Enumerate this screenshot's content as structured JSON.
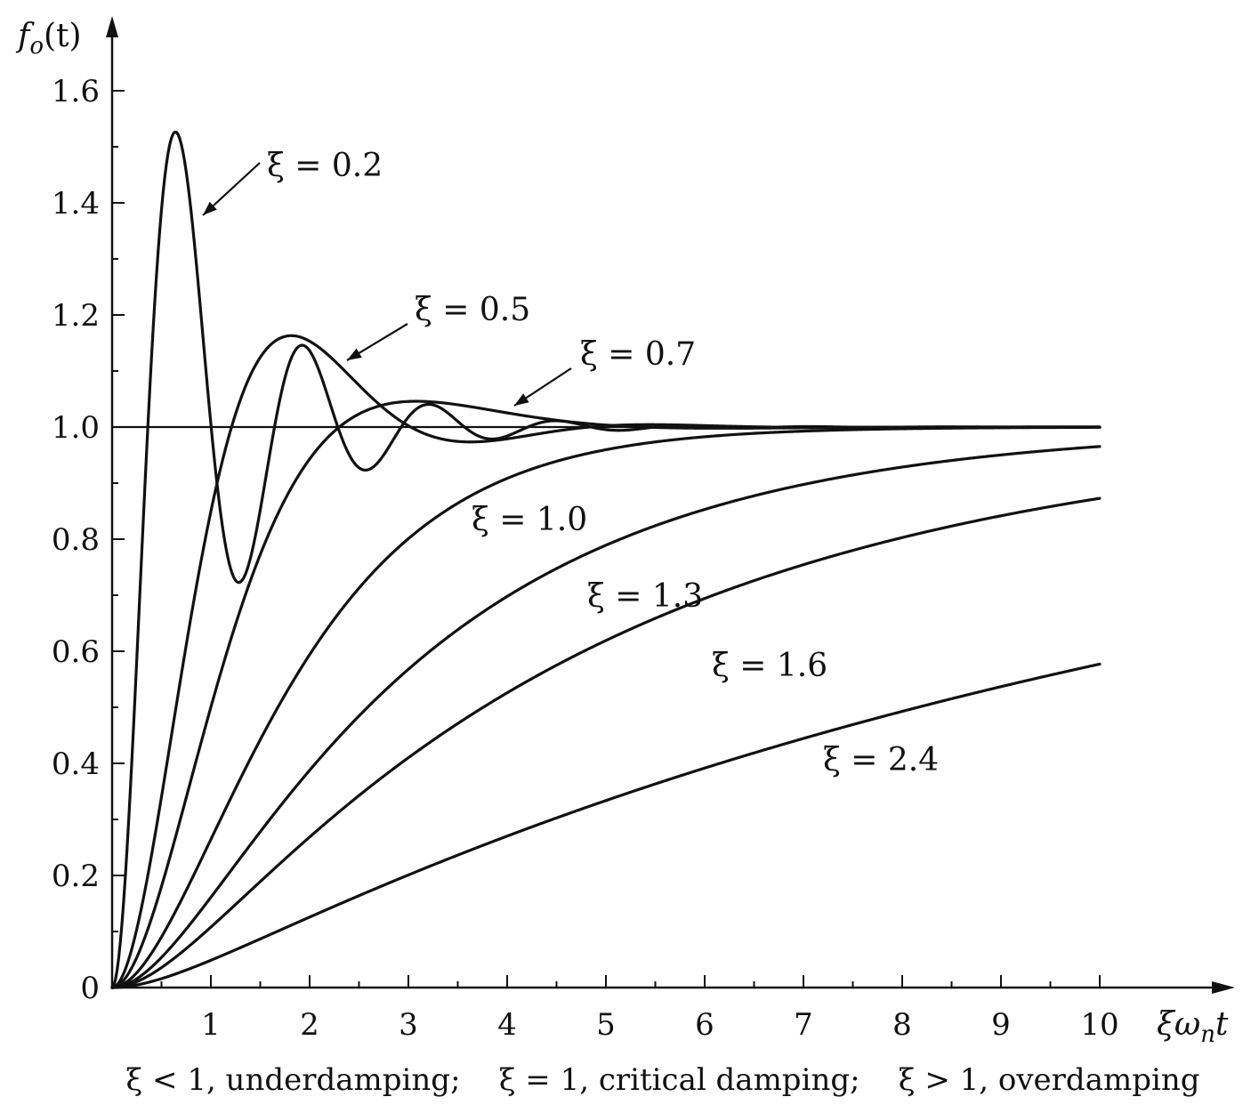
{
  "chart_data": {
    "type": "line",
    "xlabel": "ξω",
    "xlabel_sub": "n",
    "xlabel_tail": "t",
    "ylabel": "f",
    "ylabel_sub": "o",
    "ylabel_tail": "(t)",
    "xlim": [
      0,
      10
    ],
    "ylim": [
      0,
      1.6
    ],
    "x_ticks": [
      "1",
      "2",
      "3",
      "4",
      "5",
      "6",
      "7",
      "8",
      "9",
      "10"
    ],
    "y_ticks": [
      "0",
      "0.2",
      "0.4",
      "0.6",
      "0.8",
      "1.0",
      "1.2",
      "1.4",
      "1.6"
    ],
    "reference_line_y": 1.0,
    "series": [
      {
        "name": "ξ = 0.2",
        "zeta": 0.2,
        "peak": [
          0.63,
          1.52
        ],
        "trough": [
          1.4,
          0.73
        ]
      },
      {
        "name": "ξ = 0.5",
        "zeta": 0.5,
        "peak": [
          1.8,
          1.16
        ],
        "trough": [
          3.8,
          0.96
        ]
      },
      {
        "name": "ξ = 0.7",
        "zeta": 0.7,
        "peak": [
          3.0,
          1.05
        ]
      },
      {
        "name": "ξ = 1.0",
        "zeta": 1.0,
        "points": [
          [
            2,
            0.75
          ],
          [
            4,
            0.93
          ],
          [
            6,
            0.98
          ],
          [
            10,
            1.0
          ]
        ]
      },
      {
        "name": "ξ = 1.3",
        "zeta": 1.3,
        "points": [
          [
            2,
            0.48
          ],
          [
            4,
            0.75
          ],
          [
            6,
            0.88
          ],
          [
            10,
            0.97
          ]
        ]
      },
      {
        "name": "ξ = 1.6",
        "zeta": 1.6,
        "points": [
          [
            2,
            0.32
          ],
          [
            4,
            0.54
          ],
          [
            6,
            0.69
          ],
          [
            10,
            0.84
          ]
        ]
      },
      {
        "name": "ξ = 2.4",
        "zeta": 2.4,
        "points": [
          [
            2,
            0.17
          ],
          [
            4,
            0.31
          ],
          [
            6,
            0.43
          ],
          [
            10,
            0.61
          ]
        ]
      }
    ],
    "caption": "ξ < 1, underdamping;    ξ = 1, critical damping;    ξ > 1, overdamping"
  }
}
